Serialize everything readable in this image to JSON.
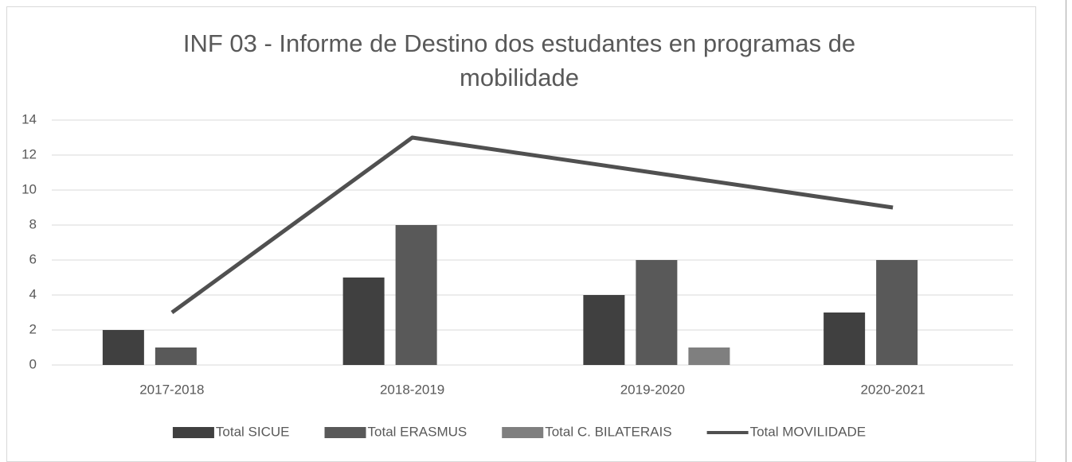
{
  "chart_data": {
    "type": "bar",
    "title": "INF 03 - Informe de Destino dos estudantes en programas de mobilidade",
    "categories": [
      "2017-2018",
      "2018-2019",
      "2019-2020",
      "2020-2021"
    ],
    "series": [
      {
        "name": "Total SICUE",
        "type": "bar",
        "color": "#404040",
        "values": [
          2,
          5,
          4,
          3
        ]
      },
      {
        "name": "Total ERASMUS",
        "type": "bar",
        "color": "#595959",
        "values": [
          1,
          8,
          6,
          6
        ]
      },
      {
        "name": "Total C. BILATERAIS",
        "type": "bar",
        "color": "#7f7f7f",
        "values": [
          0,
          0,
          1,
          0
        ]
      },
      {
        "name": "Total MOVILIDADE",
        "type": "line",
        "color": "#505050",
        "values": [
          3,
          13,
          11,
          9
        ]
      }
    ],
    "ylim": [
      0,
      14
    ],
    "yticks": [
      0,
      2,
      4,
      6,
      8,
      10,
      12,
      14
    ],
    "grid": true,
    "legend": "bottom"
  }
}
